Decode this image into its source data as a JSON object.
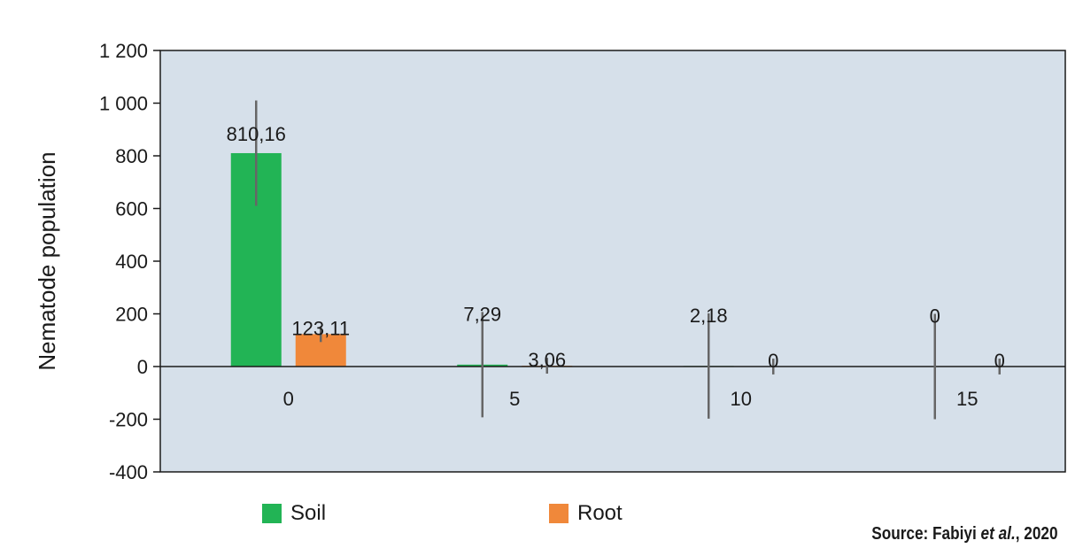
{
  "chart_data": {
    "type": "bar",
    "ylabel": "Nematode population",
    "ylim": [
      -400,
      1200
    ],
    "yticks": [
      -400,
      -200,
      0,
      200,
      400,
      600,
      800,
      1000,
      1200
    ],
    "ytick_labels": [
      "-400",
      "-200",
      "0",
      "200",
      "400",
      "600",
      "800",
      "1 000",
      "1 200"
    ],
    "categories": [
      "0",
      "5",
      "10",
      "15"
    ],
    "series": [
      {
        "name": "Soil",
        "color": "#22b455",
        "values": [
          810.16,
          7.29,
          2.18,
          0
        ],
        "labels": [
          "810,16",
          "7,29",
          "2,18",
          "0"
        ],
        "error": [
          200,
          200,
          200,
          200
        ]
      },
      {
        "name": "Root",
        "color": "#f0883a",
        "values": [
          123.11,
          3.06,
          0,
          0
        ],
        "labels": [
          "123,11",
          "3,06",
          "0",
          "0"
        ],
        "error": [
          30,
          30,
          30,
          30
        ]
      }
    ],
    "legend_position": "bottom-left",
    "grid": false,
    "plot_background": "#d6e0ea"
  },
  "source": {
    "prefix": "Source: Fabiyi ",
    "italic": "et al.",
    "suffix": ", 2020"
  }
}
